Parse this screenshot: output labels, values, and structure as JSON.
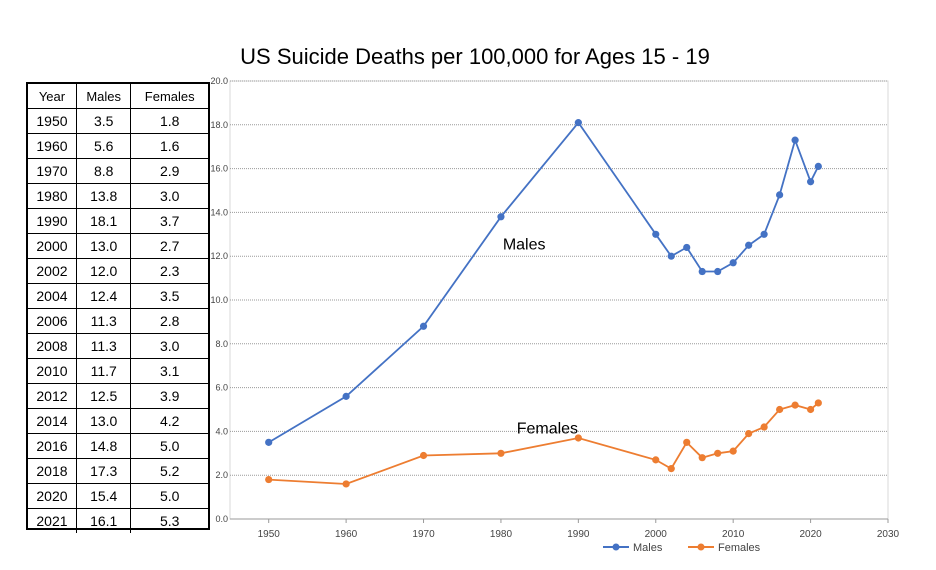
{
  "chart_data": {
    "type": "line",
    "title": "US Suicide Deaths per 100,000 for Ages 15 - 19",
    "xlabel": "",
    "ylabel": "",
    "xlim": [
      1945,
      2030
    ],
    "ylim": [
      0,
      20
    ],
    "x_ticks": [
      "1950",
      "1960",
      "1970",
      "1980",
      "1990",
      "2000",
      "2010",
      "2020",
      "2030"
    ],
    "y_ticks": [
      "0.0",
      "2.0",
      "4.0",
      "6.0",
      "8.0",
      "10.0",
      "12.0",
      "14.0",
      "16.0",
      "18.0",
      "20.0"
    ],
    "grid": true,
    "legend_placement": "bottom",
    "x": [
      1950,
      1960,
      1970,
      1980,
      1990,
      2000,
      2002,
      2004,
      2006,
      2008,
      2010,
      2012,
      2014,
      2016,
      2018,
      2020,
      2021
    ],
    "series": [
      {
        "name": "Males",
        "color": "#4472C4",
        "values": [
          3.5,
          5.6,
          8.8,
          13.8,
          18.1,
          13.0,
          12.0,
          12.4,
          11.3,
          11.3,
          11.7,
          12.5,
          13.0,
          14.8,
          17.3,
          15.4,
          16.1
        ]
      },
      {
        "name": "Females",
        "color": "#ED7D31",
        "values": [
          1.8,
          1.6,
          2.9,
          3.0,
          3.7,
          2.7,
          2.3,
          3.5,
          2.8,
          3.0,
          3.1,
          3.9,
          4.2,
          5.0,
          5.2,
          5.0,
          5.3
        ]
      }
    ],
    "annotations": [
      {
        "text": "Males",
        "series": 0
      },
      {
        "text": "Females",
        "series": 1
      }
    ]
  },
  "table": {
    "headers": [
      "Year",
      "Males",
      "Females"
    ],
    "rows": [
      [
        "1950",
        "3.5",
        "1.8"
      ],
      [
        "1960",
        "5.6",
        "1.6"
      ],
      [
        "1970",
        "8.8",
        "2.9"
      ],
      [
        "1980",
        "13.8",
        "3.0"
      ],
      [
        "1990",
        "18.1",
        "3.7"
      ],
      [
        "2000",
        "13.0",
        "2.7"
      ],
      [
        "2002",
        "12.0",
        "2.3"
      ],
      [
        "2004",
        "12.4",
        "3.5"
      ],
      [
        "2006",
        "11.3",
        "2.8"
      ],
      [
        "2008",
        "11.3",
        "3.0"
      ],
      [
        "2010",
        "11.7",
        "3.1"
      ],
      [
        "2012",
        "12.5",
        "3.9"
      ],
      [
        "2014",
        "13.0",
        "4.2"
      ],
      [
        "2016",
        "14.8",
        "5.0"
      ],
      [
        "2018",
        "17.3",
        "5.2"
      ],
      [
        "2020",
        "15.4",
        "5.0"
      ],
      [
        "2021",
        "16.1",
        "5.3"
      ]
    ]
  }
}
